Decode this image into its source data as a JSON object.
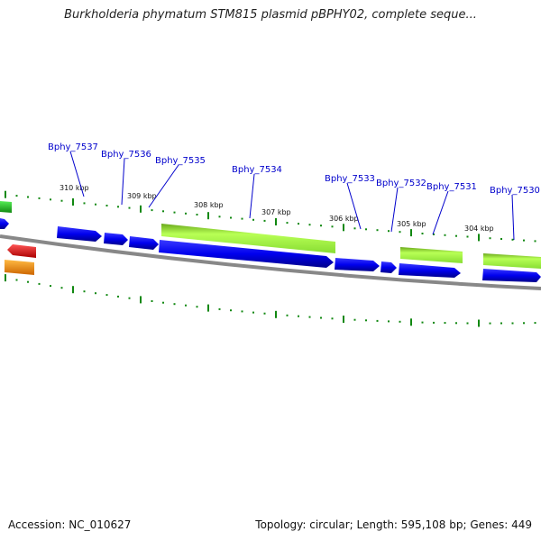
{
  "title": "Burkholderia phymatum STM815 plasmid pBPHY02, complete seque...",
  "accession": "Accession: NC_010627",
  "summary": "Topology: circular; Length: 595,108 bp; Genes: 449",
  "kbp_labels": [
    "310 kbp",
    "309 kbp",
    "308 kbp",
    "307 kbp",
    "306 kbp",
    "305 kbp",
    "304 kbp"
  ],
  "gene_labels": [
    "Bphy_7537",
    "Bphy_7536",
    "Bphy_7535",
    "Bphy_7534",
    "Bphy_7533",
    "Bphy_7532",
    "Bphy_7531",
    "Bphy_7530"
  ],
  "colors": {
    "cds": "#0000ee",
    "gene": "#99ee33",
    "ticks": "#118811",
    "backbone": "#888888",
    "label": "#0000cc",
    "red_feature": "#ee1111",
    "orange_feature": "#ff9911",
    "green_feature": "#33cc33"
  }
}
